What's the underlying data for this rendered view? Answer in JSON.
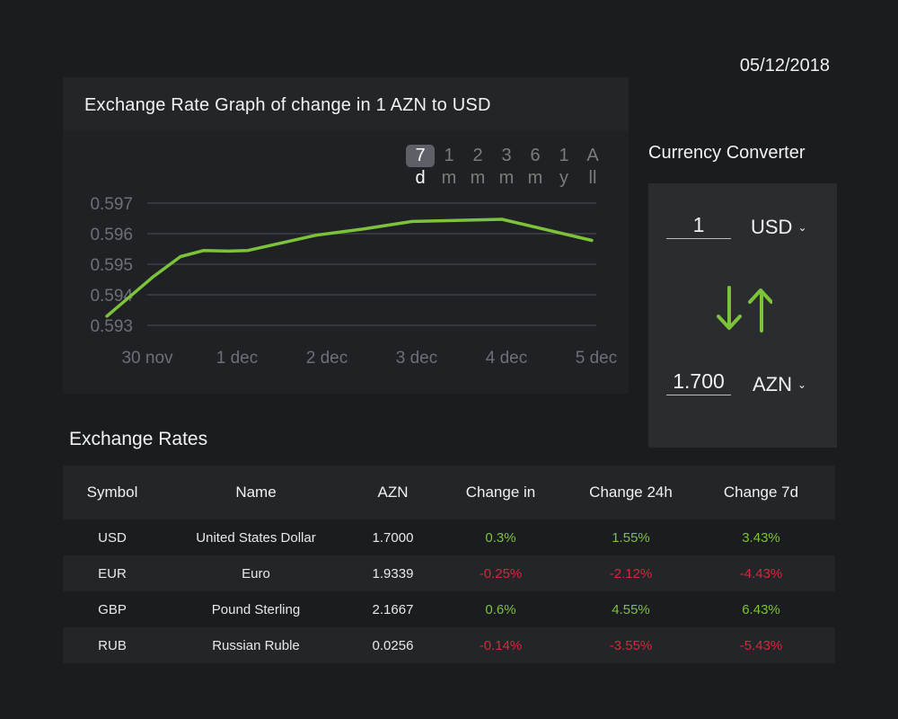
{
  "date": "05/12/2018",
  "graph": {
    "title": "Exchange Rate Graph of  change in 1 AZN to USD",
    "ranges": [
      {
        "line1": "7",
        "line2": "d",
        "active": true
      },
      {
        "line1": "1",
        "line2": "m",
        "active": false
      },
      {
        "line1": "2",
        "line2": "m",
        "active": false
      },
      {
        "line1": "3",
        "line2": "m",
        "active": false
      },
      {
        "line1": "6",
        "line2": "m",
        "active": false
      },
      {
        "line1": "1",
        "line2": "y",
        "active": false
      },
      {
        "line1": "A",
        "line2": "ll",
        "active": false
      }
    ]
  },
  "chart_data": {
    "type": "line",
    "title": "Exchange Rate Graph of  change in 1 AZN to USD",
    "x_ticks": [
      "30 nov",
      "1 dec",
      "2 dec",
      "3 dec",
      "4 dec",
      "5 dec"
    ],
    "y_ticks": [
      "0.597",
      "0.596",
      "0.595",
      "0.594",
      "0.593"
    ],
    "ylim": [
      0.593,
      0.597
    ],
    "grid": true,
    "line_color": "#7cc23a",
    "series": [
      {
        "x": [
          -0.45,
          0.07,
          0.37,
          0.63,
          0.9,
          1.12,
          1.35,
          1.88,
          2.4,
          2.95,
          3.95,
          4.95
        ],
        "values": [
          0.5933,
          0.5946,
          0.59525,
          0.59545,
          0.59543,
          0.59545,
          0.5956,
          0.59595,
          0.59615,
          0.5964,
          0.59647,
          0.59578
        ]
      }
    ]
  },
  "converter": {
    "title": "Currency Converter",
    "from_amount": "1",
    "from_currency": "USD",
    "to_amount": "1.700",
    "to_currency": "AZN",
    "chevron": "⌄",
    "swap_icon": "swap-arrows"
  },
  "rates": {
    "title": "Exchange Rates",
    "headers": [
      "Symbol",
      "Name",
      "AZN",
      "Change in",
      "Change 24h",
      "Change 7d"
    ],
    "rows": [
      {
        "symbol": "USD",
        "name": "United States Dollar",
        "azn": "1.7000",
        "change": "0.3%",
        "change_24h": "1.55%",
        "change_7d": "3.43%"
      },
      {
        "symbol": "EUR",
        "name": "Euro",
        "azn": "1.9339",
        "change": "-0.25%",
        "change_24h": "-2.12%",
        "change_7d": "-4.43%"
      },
      {
        "symbol": "GBP",
        "name": "Pound Sterling",
        "azn": "2.1667",
        "change": "0.6%",
        "change_24h": "4.55%",
        "change_7d": "6.43%"
      },
      {
        "symbol": "RUB",
        "name": "Russian Ruble",
        "azn": "0.0256",
        "change": "-0.14%",
        "change_24h": "-3.55%",
        "change_7d": "-5.43%"
      }
    ],
    "positive_color": "#7cc23a",
    "negative_color": "#d9263a"
  }
}
